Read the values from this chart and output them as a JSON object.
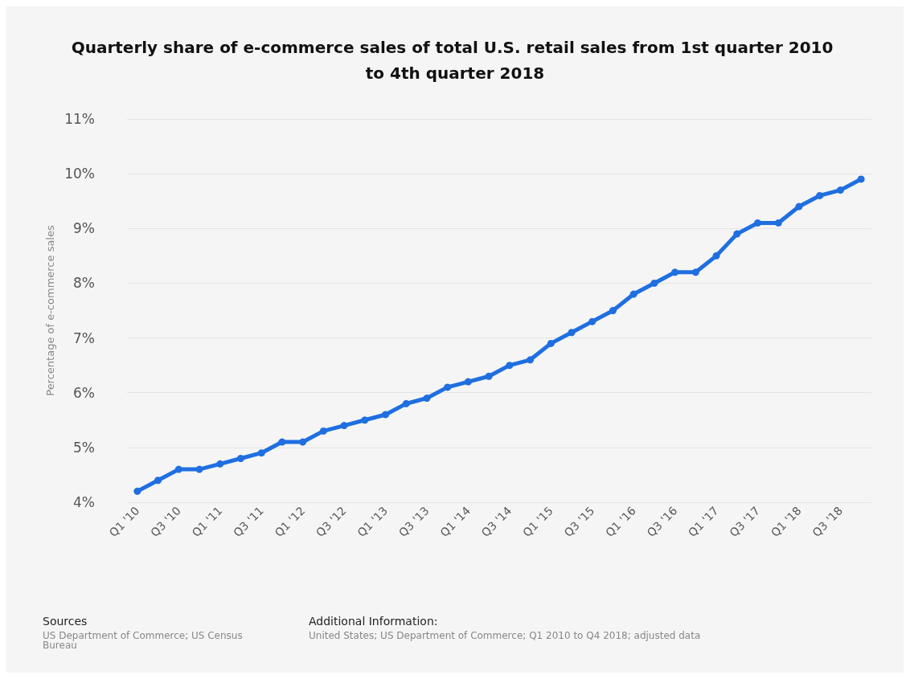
{
  "chart_data": {
    "type": "line",
    "title": "Quarterly share of e-commerce sales of total U.S. retail sales from 1st quarter 2010 to 4th quarter 2018",
    "ylabel": "Percentage of e-commerce sales",
    "categories": [
      "Q1 '10",
      null,
      "Q3 '10",
      null,
      "Q1 '11",
      null,
      "Q3 '11",
      null,
      "Q1 '12",
      null,
      "Q3 '12",
      null,
      "Q1 '13",
      null,
      "Q3 '13",
      null,
      "Q1 '14",
      null,
      "Q3 '14",
      null,
      "Q1 '15",
      null,
      "Q3 '15",
      null,
      "Q1 '16",
      null,
      "Q3 '16",
      null,
      "Q1 '17",
      null,
      "Q3 '17",
      null,
      "Q1 '18",
      null,
      "Q3 '18",
      null
    ],
    "series": [
      {
        "color": "#1f6fe0",
        "values": [
          4.2,
          4.4,
          4.6,
          4.6,
          4.7,
          4.8,
          4.9,
          5.1,
          5.1,
          5.3,
          5.4,
          5.5,
          5.6,
          5.8,
          5.9,
          6.1,
          6.2,
          6.3,
          6.5,
          6.6,
          6.9,
          7.1,
          7.3,
          7.5,
          7.8,
          8.0,
          8.2,
          8.2,
          8.5,
          8.9,
          9.1,
          9.1,
          9.4,
          9.6,
          9.7,
          9.9
        ]
      }
    ],
    "ylim": [
      4,
      11
    ],
    "yticks": [
      {
        "value": 4,
        "label": "4%"
      },
      {
        "value": 5,
        "label": "5%"
      },
      {
        "value": 6,
        "label": "6%"
      },
      {
        "value": 7,
        "label": "7%"
      },
      {
        "value": 8,
        "label": "8%"
      },
      {
        "value": 9,
        "label": "9%"
      },
      {
        "value": 10,
        "label": "10%"
      },
      {
        "value": 11,
        "label": "11%"
      }
    ],
    "grid": "y",
    "marker": "circle",
    "annotations": [
      "Sources",
      "US Department of Commerce; US Census Bureau",
      "Additional Information:",
      "United States; US Department of Commerce; Q1 2010 to Q4 2018; adjusted data"
    ]
  }
}
